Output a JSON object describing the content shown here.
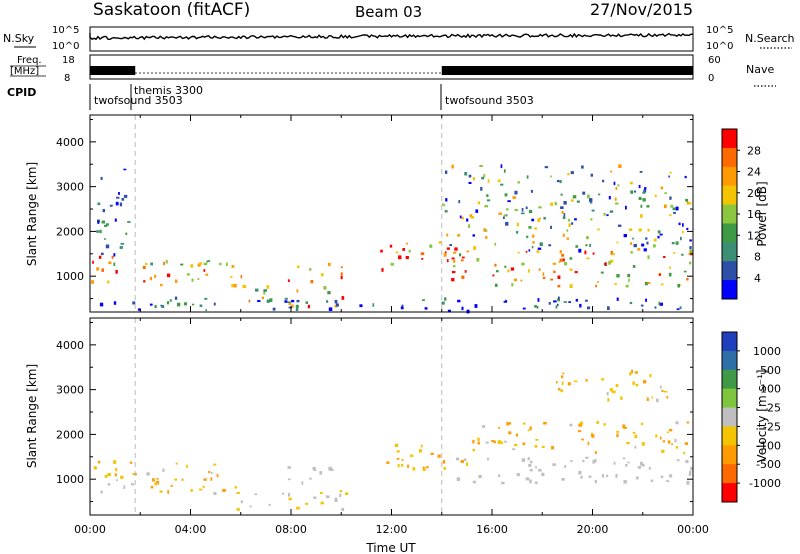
{
  "header": {
    "station": "Saskatoon (fitACF)",
    "beam": "Beam 03",
    "date": "27/Nov/2015"
  },
  "strip_panels": {
    "nsky_label": "N.Sky",
    "nsky_ticks": [
      "10^5",
      "10^0"
    ],
    "nsearch_label": "N.Search",
    "nsearch_ticks": [
      "10^5",
      "10^0"
    ],
    "freq_label_1": "Freq.",
    "freq_label_2": "[MHz]",
    "freq_ticks": [
      "18",
      "8"
    ],
    "nave_label": "Nave",
    "nave_ticks": [
      "60",
      "0"
    ],
    "cpid_label": "CPID",
    "cpid_segments": [
      {
        "name": "twofsound 3503",
        "start_hour": 0,
        "end_hour": 1.8
      },
      {
        "name": "themis 3300",
        "start_hour": 1.8,
        "end_hour": 14.0
      },
      {
        "name": "twofsound 3503",
        "start_hour": 14.0,
        "end_hour": 24.0
      }
    ]
  },
  "chart_data": [
    {
      "type": "heatmap",
      "name": "Power",
      "ylabel": "Slant Range [km]",
      "xlabel": "",
      "xlim": [
        0,
        24
      ],
      "ylim": [
        200,
        4600
      ],
      "yticks": [
        "1000",
        "2000",
        "3000",
        "4000"
      ],
      "colorbar_label": "Power [dB]",
      "colorbar_ticks": [
        "28",
        "24",
        "20",
        "16",
        "12",
        "8",
        "4"
      ],
      "colorbar_colors": [
        "#ff0000",
        "#ff6a00",
        "#ff9a00",
        "#f4c400",
        "#8cc63f",
        "#3f9a46",
        "#3a8f74",
        "#2e4fa8",
        "#0000ff"
      ],
      "scatter_regions": [
        {
          "t0": 0.0,
          "t1": 2.2,
          "r0": 900,
          "r1": 1500,
          "vmin": 10,
          "vmax": 30
        },
        {
          "t0": 0.1,
          "t1": 1.6,
          "r0": 1500,
          "r1": 3400,
          "vmin": 4,
          "vmax": 14
        },
        {
          "t0": 2.2,
          "t1": 6.2,
          "r0": 700,
          "r1": 1400,
          "vmin": 10,
          "vmax": 28
        },
        {
          "t0": 5.8,
          "t1": 10.2,
          "r0": 350,
          "r1": 800,
          "vmin": 10,
          "vmax": 28
        },
        {
          "t0": 7.8,
          "t1": 10.0,
          "r0": 900,
          "r1": 1300,
          "vmin": 14,
          "vmax": 28
        },
        {
          "t0": 11.5,
          "t1": 15.0,
          "r0": 1100,
          "r1": 1800,
          "vmin": 14,
          "vmax": 30
        },
        {
          "t0": 14.2,
          "t1": 24.0,
          "r0": 800,
          "r1": 1600,
          "vmin": 12,
          "vmax": 30
        },
        {
          "t0": 14.0,
          "t1": 24.0,
          "r0": 1600,
          "r1": 3500,
          "vmin": 4,
          "vmax": 22
        },
        {
          "t0": 0.0,
          "t1": 24.0,
          "r0": 250,
          "r1": 550,
          "vmin": 2,
          "vmax": 14
        }
      ]
    },
    {
      "type": "heatmap",
      "name": "Velocity",
      "ylabel": "Slant Range [km]",
      "xlabel": "Time UT",
      "xlim": [
        0,
        24
      ],
      "ylim": [
        200,
        4600
      ],
      "xticks": [
        "00:00",
        "04:00",
        "08:00",
        "12:00",
        "16:00",
        "20:00",
        "00:00"
      ],
      "yticks": [
        "1000",
        "2000",
        "3000",
        "4000"
      ],
      "colorbar_label": "Velocity [m s⁻¹]",
      "colorbar_ticks": [
        "1000",
        "500",
        "100",
        "25",
        "-25",
        "-100",
        "-500",
        "-1000"
      ],
      "colorbar_colors": [
        "#1f3fbf",
        "#2f6fa8",
        "#3f9a46",
        "#7fc63f",
        "#bfbfbf",
        "#f4c400",
        "#ff9a00",
        "#ff6a00",
        "#ff0000"
      ],
      "scatter_regions": [
        {
          "t0": 0.0,
          "t1": 2.2,
          "r0": 1000,
          "r1": 1500,
          "vmin": -500,
          "vmax": -100
        },
        {
          "t0": 0.0,
          "t1": 1.8,
          "r0": 700,
          "r1": 1000,
          "vmin": -25,
          "vmax": 25
        },
        {
          "t0": 2.2,
          "t1": 6.2,
          "r0": 700,
          "r1": 1400,
          "vmin": -500,
          "vmax": -100
        },
        {
          "t0": 5.8,
          "t1": 10.2,
          "r0": 350,
          "r1": 800,
          "vmin": -150,
          "vmax": -80
        },
        {
          "t0": 7.8,
          "t1": 10.0,
          "r0": 900,
          "r1": 1300,
          "vmin": -25,
          "vmax": 25
        },
        {
          "t0": 11.5,
          "t1": 15.0,
          "r0": 1200,
          "r1": 1800,
          "vmin": -500,
          "vmax": -100
        },
        {
          "t0": 14.5,
          "t1": 24.0,
          "r0": 900,
          "r1": 1500,
          "vmin": -25,
          "vmax": 25
        },
        {
          "t0": 15.0,
          "t1": 24.0,
          "r0": 1600,
          "r1": 2300,
          "vmin": -500,
          "vmax": -100
        },
        {
          "t0": 18.5,
          "t1": 23.0,
          "r0": 2800,
          "r1": 3500,
          "vmin": -500,
          "vmax": -100
        }
      ]
    }
  ],
  "reference_lines_hours": [
    1.8,
    14.0
  ]
}
